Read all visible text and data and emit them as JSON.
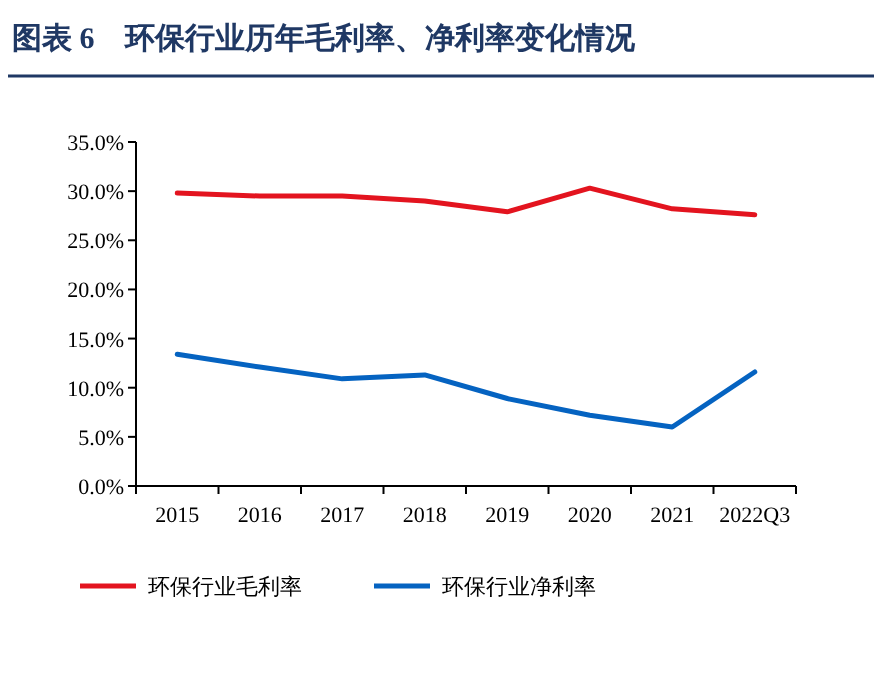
{
  "chart_data": {
    "type": "line",
    "title": "图表 6　环保行业历年毛利率、净利率变化情况",
    "categories": [
      "2015",
      "2016",
      "2017",
      "2018",
      "2019",
      "2020",
      "2021",
      "2022Q3"
    ],
    "series": [
      {
        "name": "环保行业毛利率",
        "color": "#e3141f",
        "values": [
          29.8,
          29.5,
          29.5,
          29.0,
          27.9,
          30.3,
          28.2,
          27.6
        ]
      },
      {
        "name": "环保行业净利率",
        "color": "#0563c1",
        "values": [
          13.4,
          12.1,
          10.9,
          11.3,
          8.9,
          7.2,
          6.0,
          11.6
        ]
      }
    ],
    "ylim": [
      0,
      35
    ],
    "yticks": [
      {
        "value": 0,
        "label": "0.0%"
      },
      {
        "value": 5,
        "label": "5.0%"
      },
      {
        "value": 10,
        "label": "10.0%"
      },
      {
        "value": 15,
        "label": "15.0%"
      },
      {
        "value": 20,
        "label": "20.0%"
      },
      {
        "value": 25,
        "label": "25.0%"
      },
      {
        "value": 30,
        "label": "30.0%"
      },
      {
        "value": 35,
        "label": "35.0%"
      }
    ],
    "grid": false,
    "legend": "bottom",
    "marker": "none",
    "line_style": "solid"
  }
}
